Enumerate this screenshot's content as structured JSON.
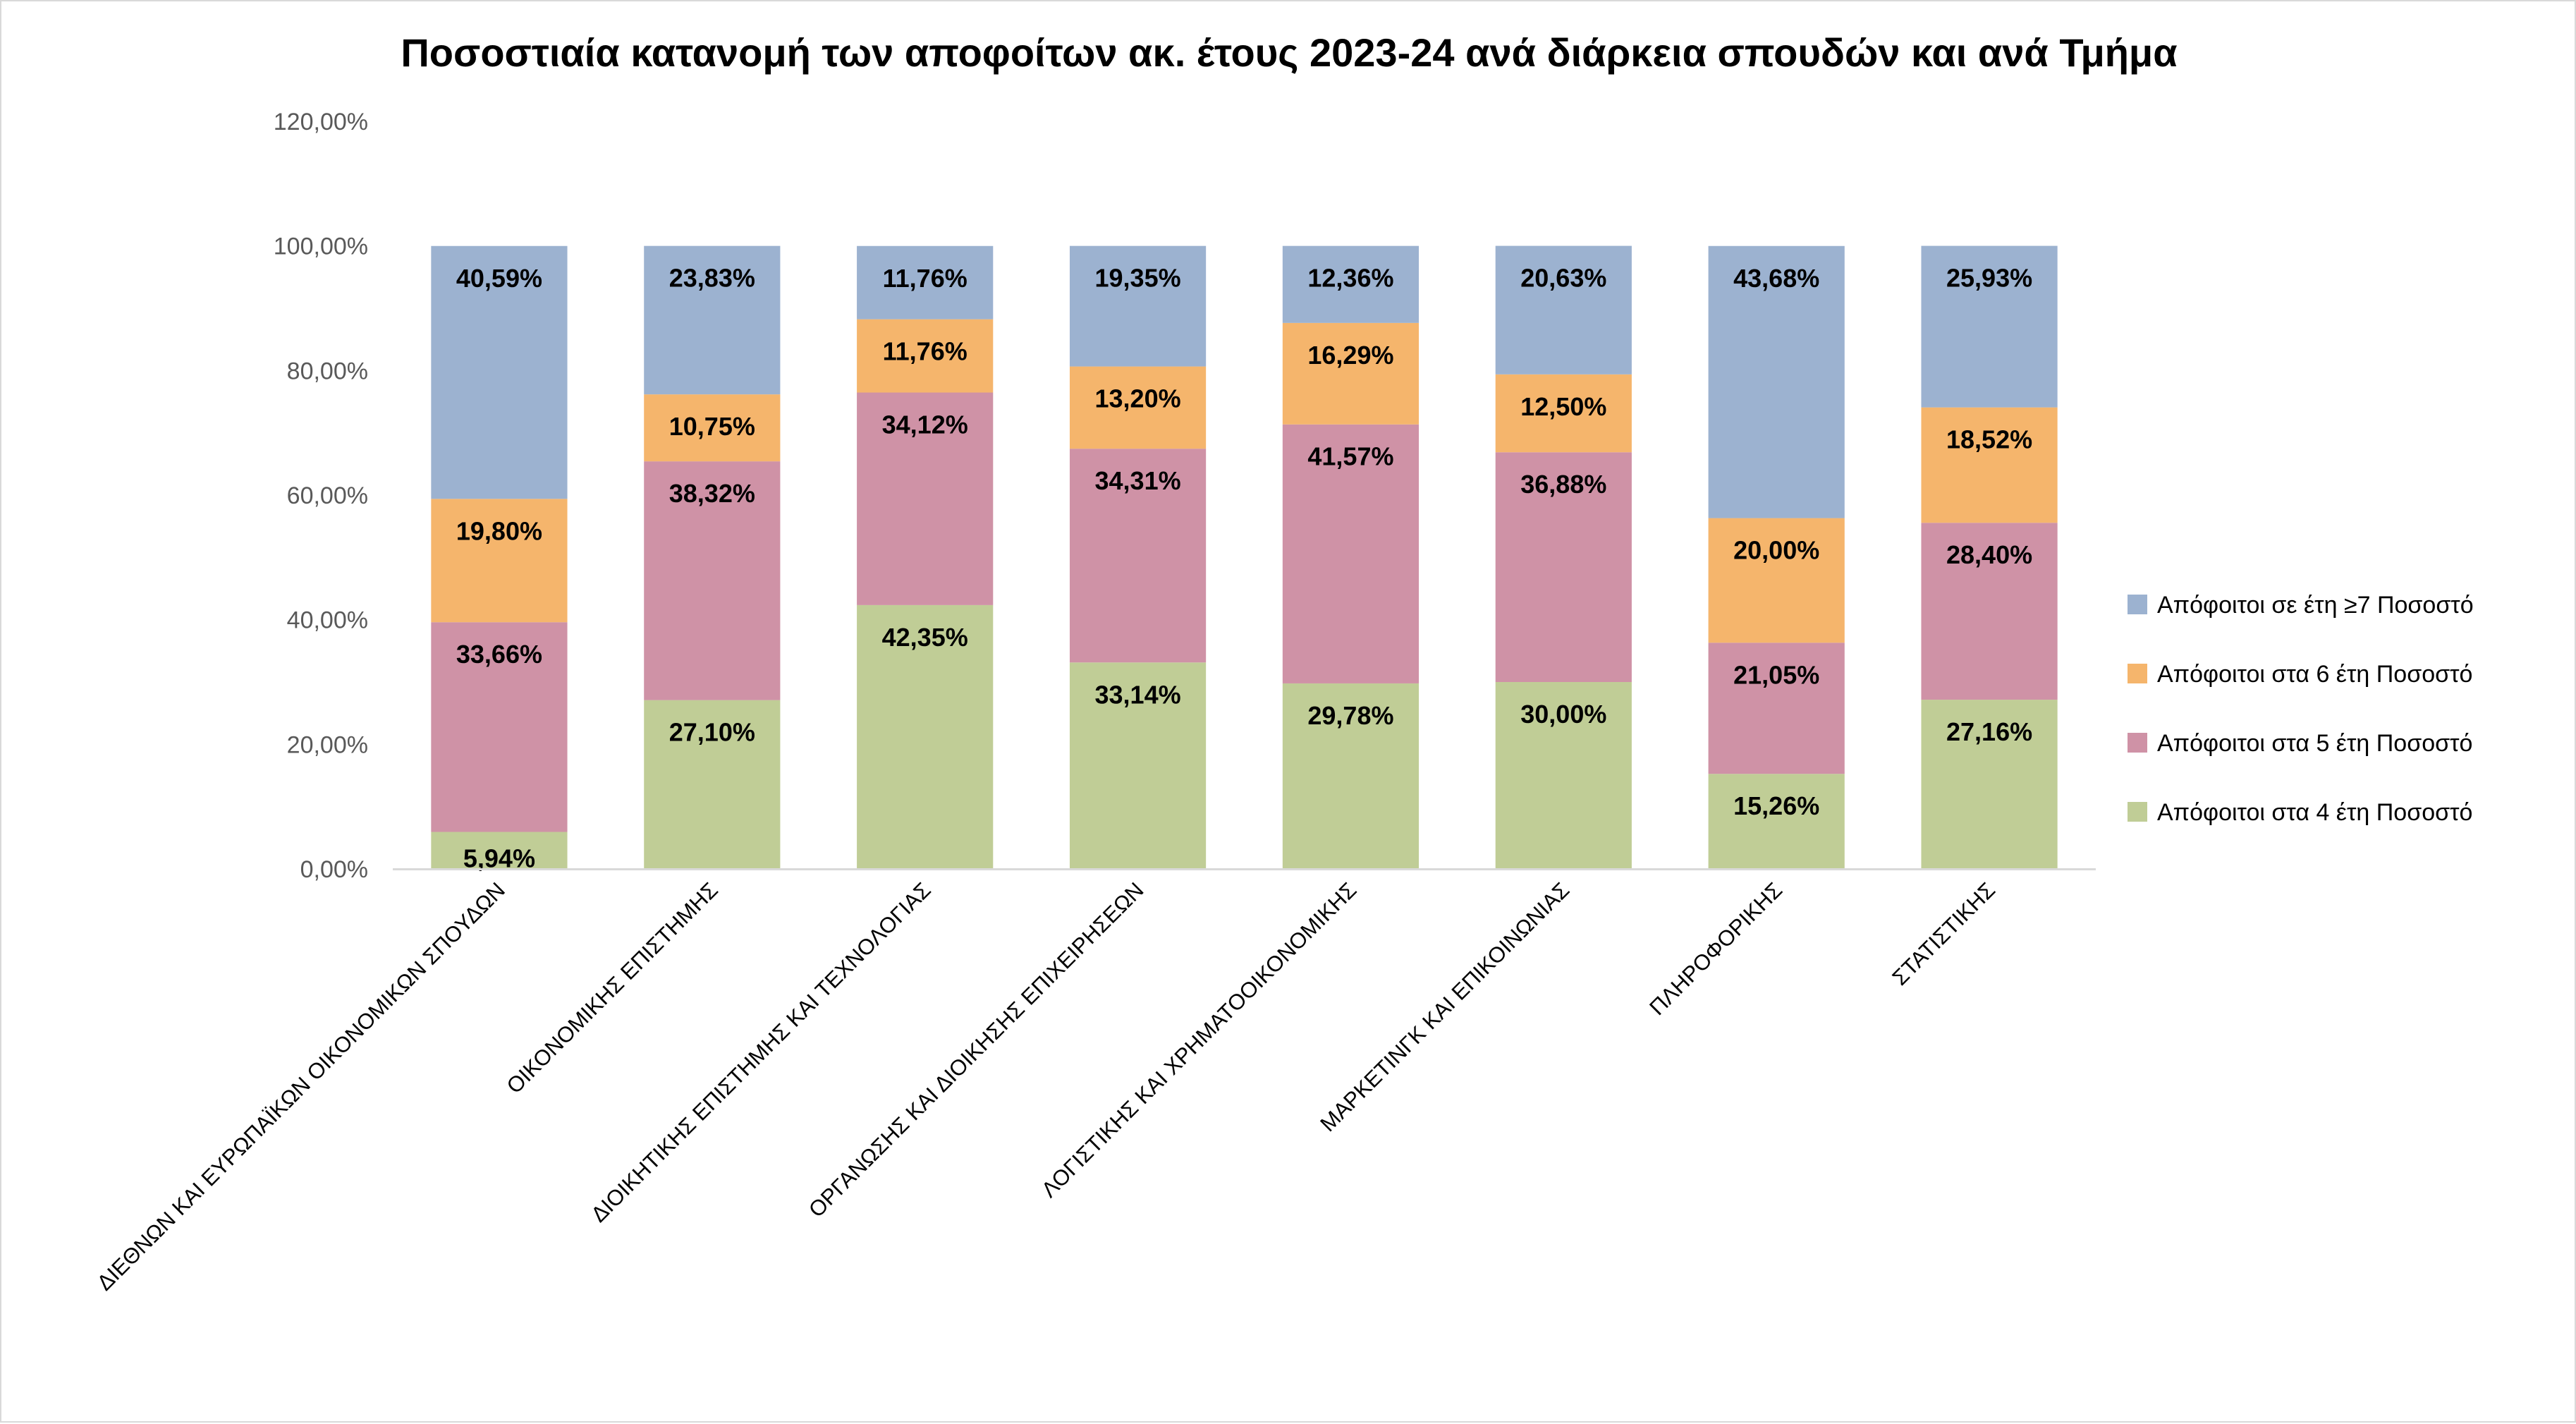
{
  "chart_data": {
    "type": "bar",
    "stacked": true,
    "title": "Ποσοστιαία κατανομή των αποφοίτων ακ. έτους 2023-24 ανά διάρκεια σπουδών και ανά Τμήμα",
    "categories": [
      "ΔΙΕΘΝΩΝ ΚΑΙ ΕΥΡΩΠΑΪΚΩΝ ΟΙΚΟΝΟΜΙΚΩΝ ΣΠΟΥΔΩΝ",
      "ΟΙΚΟΝΟΜΙΚΗΣ ΕΠΙΣΤΗΜΗΣ",
      "ΔΙΟΙΚΗΤΙΚΗΣ ΕΠΙΣΤΗΜΗΣ ΚΑΙ ΤΕΧΝΟΛΟΓΙΑΣ",
      "ΟΡΓΑΝΩΣΗΣ ΚΑΙ ΔΙΟΙΚΗΣΗΣ ΕΠΙΧΕΙΡΗΣΕΩΝ",
      "ΛΟΓΙΣΤΙΚΗΣ ΚΑΙ ΧΡΗΜΑΤΟΟΙΚΟΝΟΜΙΚΗΣ",
      "ΜΑΡΚΕΤΙΝΓΚ ΚΑΙ ΕΠΙΚΟΙΝΩΝΙΑΣ",
      "ΠΛΗΡΟΦΟΡΙΚΗΣ",
      "ΣΤΑΤΙΣΤΙΚΗΣ"
    ],
    "series": [
      {
        "name": "Απόφοιτοι στα 4 έτη Ποσοστό",
        "color": "#c0cd96",
        "values": [
          5.94,
          27.1,
          42.35,
          33.14,
          29.78,
          30.0,
          15.26,
          27.16
        ],
        "labels": [
          "5,94%",
          "27,10%",
          "42,35%",
          "33,14%",
          "29,78%",
          "30,00%",
          "15,26%",
          "27,16%"
        ]
      },
      {
        "name": "Απόφοιτοι στα 5 έτη Ποσοστό",
        "color": "#cf92a6",
        "values": [
          33.66,
          38.32,
          34.12,
          34.31,
          41.57,
          36.88,
          21.05,
          28.4
        ],
        "labels": [
          "33,66%",
          "38,32%",
          "34,12%",
          "34,31%",
          "41,57%",
          "36,88%",
          "21,05%",
          "28,40%"
        ]
      },
      {
        "name": "Απόφοιτοι στα 6 έτη Ποσοστό",
        "color": "#f5b56c",
        "values": [
          19.8,
          10.75,
          11.76,
          13.2,
          16.29,
          12.5,
          20.0,
          18.52
        ],
        "labels": [
          "19,80%",
          "10,75%",
          "11,76%",
          "13,20%",
          "16,29%",
          "12,50%",
          "20,00%",
          "18,52%"
        ]
      },
      {
        "name": "Απόφοιτοι σε έτη ≥7 Ποσοστό",
        "color": "#9cb2d0",
        "values": [
          40.59,
          23.83,
          11.76,
          19.35,
          12.36,
          20.63,
          43.68,
          25.93
        ],
        "labels": [
          "40,59%",
          "23,83%",
          "11,76%",
          "19,35%",
          "12,36%",
          "20,63%",
          "43,68%",
          "25,93%"
        ]
      }
    ],
    "legend_order": [
      3,
      2,
      1,
      0
    ],
    "ylim": [
      0,
      120
    ],
    "yticks": [
      0,
      20,
      40,
      60,
      80,
      100,
      120
    ],
    "ytick_labels": [
      "0,00%",
      "20,00%",
      "40,00%",
      "60,00%",
      "80,00%",
      "100,00%",
      "120,00%"
    ],
    "grid": false,
    "legend_position": "right"
  }
}
